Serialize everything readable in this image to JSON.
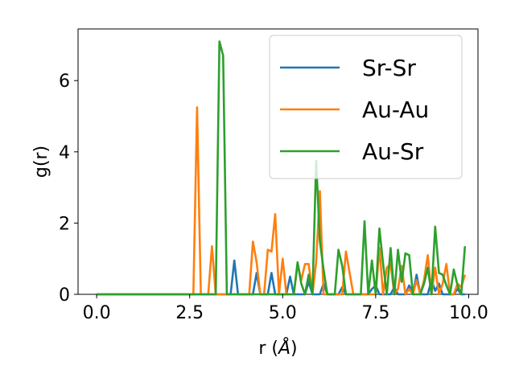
{
  "chart_data": {
    "type": "line",
    "title": "",
    "xlabel": "r (",
    "xlabel_unit": "Å",
    "xlabel_close": ")",
    "ylabel": "g(r)",
    "xlim": [
      -0.5,
      10.25
    ],
    "ylim": [
      0,
      7.45
    ],
    "xticks": [
      0.0,
      2.5,
      5.0,
      7.5,
      10.0
    ],
    "xtick_labels": [
      "0.0",
      "2.5",
      "5.0",
      "7.5",
      "10.0"
    ],
    "yticks": [
      0,
      2,
      4,
      6
    ],
    "ytick_labels": [
      "0",
      "2",
      "4",
      "6"
    ],
    "grid": false,
    "legend_position": "top-right",
    "series": [
      {
        "name": "Sr-Sr",
        "color": "#1f77b4",
        "points": [
          [
            0,
            0
          ],
          [
            3.5,
            0
          ],
          [
            3.6,
            0
          ],
          [
            3.7,
            0.95
          ],
          [
            3.8,
            0
          ],
          [
            4.1,
            0
          ],
          [
            4.2,
            0
          ],
          [
            4.3,
            0.6
          ],
          [
            4.4,
            0
          ],
          [
            4.6,
            0
          ],
          [
            4.7,
            0.6
          ],
          [
            4.8,
            0
          ],
          [
            5.1,
            0
          ],
          [
            5.2,
            0.5
          ],
          [
            5.3,
            0
          ],
          [
            5.6,
            0
          ],
          [
            5.7,
            0.35
          ],
          [
            5.8,
            0
          ],
          [
            6.0,
            0
          ],
          [
            6.1,
            0.3
          ],
          [
            6.2,
            0
          ],
          [
            6.5,
            0
          ],
          [
            6.6,
            0.2
          ],
          [
            6.7,
            0
          ],
          [
            7.3,
            0
          ],
          [
            7.4,
            0.15
          ],
          [
            7.5,
            0.25
          ],
          [
            7.6,
            0
          ],
          [
            7.9,
            0
          ],
          [
            8.0,
            0.2
          ],
          [
            8.1,
            0
          ],
          [
            8.3,
            0
          ],
          [
            8.4,
            0.25
          ],
          [
            8.5,
            0
          ],
          [
            8.6,
            0.55
          ],
          [
            8.7,
            0
          ],
          [
            8.9,
            0
          ],
          [
            9.0,
            0.4
          ],
          [
            9.1,
            0.1
          ],
          [
            9.2,
            0.3
          ],
          [
            9.3,
            0
          ],
          [
            9.6,
            0
          ],
          [
            9.7,
            0.15
          ],
          [
            9.8,
            0
          ],
          [
            9.9,
            0
          ]
        ]
      },
      {
        "name": "Au-Au",
        "color": "#ff7f0e",
        "points": [
          [
            0,
            0
          ],
          [
            2.6,
            0
          ],
          [
            2.7,
            5.25
          ],
          [
            2.8,
            0
          ],
          [
            3.0,
            0
          ],
          [
            3.1,
            1.35
          ],
          [
            3.2,
            0
          ],
          [
            4.1,
            0
          ],
          [
            4.2,
            1.48
          ],
          [
            4.3,
            0.9
          ],
          [
            4.4,
            0
          ],
          [
            4.5,
            0
          ],
          [
            4.6,
            1.25
          ],
          [
            4.7,
            1.2
          ],
          [
            4.8,
            2.25
          ],
          [
            4.9,
            0
          ],
          [
            5.0,
            1.0
          ],
          [
            5.1,
            0
          ],
          [
            5.3,
            0
          ],
          [
            5.4,
            0.85
          ],
          [
            5.5,
            0.4
          ],
          [
            5.6,
            0.85
          ],
          [
            5.7,
            0.85
          ],
          [
            5.8,
            0
          ],
          [
            5.9,
            0.9
          ],
          [
            6.0,
            2.9
          ],
          [
            6.1,
            0
          ],
          [
            6.6,
            0
          ],
          [
            6.7,
            1.2
          ],
          [
            6.8,
            0.6
          ],
          [
            6.9,
            0
          ],
          [
            7.5,
            0
          ],
          [
            7.6,
            1.3
          ],
          [
            7.7,
            0
          ],
          [
            7.8,
            0.75
          ],
          [
            7.9,
            0.85
          ],
          [
            8.0,
            0
          ],
          [
            8.1,
            0.15
          ],
          [
            8.2,
            0.8
          ],
          [
            8.3,
            0
          ],
          [
            8.4,
            0.15
          ],
          [
            8.5,
            0
          ],
          [
            8.6,
            0.4
          ],
          [
            8.7,
            0
          ],
          [
            8.8,
            0.4
          ],
          [
            8.9,
            1.1
          ],
          [
            9.0,
            0
          ],
          [
            9.1,
            0.75
          ],
          [
            9.2,
            0
          ],
          [
            9.3,
            0.3
          ],
          [
            9.4,
            0.85
          ],
          [
            9.5,
            0
          ],
          [
            9.6,
            0
          ],
          [
            9.7,
            0.3
          ],
          [
            9.8,
            0.2
          ],
          [
            9.9,
            0.55
          ]
        ]
      },
      {
        "name": "Au-Sr",
        "color": "#2ca02c",
        "points": [
          [
            0,
            0
          ],
          [
            3.2,
            0
          ],
          [
            3.3,
            7.1
          ],
          [
            3.4,
            6.7
          ],
          [
            3.5,
            0
          ],
          [
            5.3,
            0
          ],
          [
            5.4,
            0.9
          ],
          [
            5.5,
            0.3
          ],
          [
            5.6,
            0
          ],
          [
            5.7,
            0.55
          ],
          [
            5.8,
            0
          ],
          [
            5.9,
            3.75
          ],
          [
            6.0,
            1.5
          ],
          [
            6.1,
            0.7
          ],
          [
            6.2,
            0
          ],
          [
            6.4,
            0
          ],
          [
            6.5,
            1.25
          ],
          [
            6.6,
            0.8
          ],
          [
            6.7,
            0
          ],
          [
            7.1,
            0
          ],
          [
            7.2,
            2.05
          ],
          [
            7.3,
            0
          ],
          [
            7.4,
            0.95
          ],
          [
            7.5,
            0
          ],
          [
            7.6,
            1.85
          ],
          [
            7.7,
            0.85
          ],
          [
            7.8,
            0
          ],
          [
            7.9,
            1.3
          ],
          [
            8.0,
            0
          ],
          [
            8.1,
            1.25
          ],
          [
            8.2,
            0.35
          ],
          [
            8.3,
            1.15
          ],
          [
            8.4,
            1.1
          ],
          [
            8.5,
            0
          ],
          [
            8.7,
            0
          ],
          [
            8.8,
            0.3
          ],
          [
            8.9,
            0.75
          ],
          [
            9.0,
            0
          ],
          [
            9.1,
            1.9
          ],
          [
            9.2,
            0.6
          ],
          [
            9.3,
            0.55
          ],
          [
            9.4,
            0.25
          ],
          [
            9.5,
            0
          ],
          [
            9.6,
            0.7
          ],
          [
            9.7,
            0.25
          ],
          [
            9.8,
            0
          ],
          [
            9.9,
            1.35
          ]
        ]
      }
    ]
  }
}
